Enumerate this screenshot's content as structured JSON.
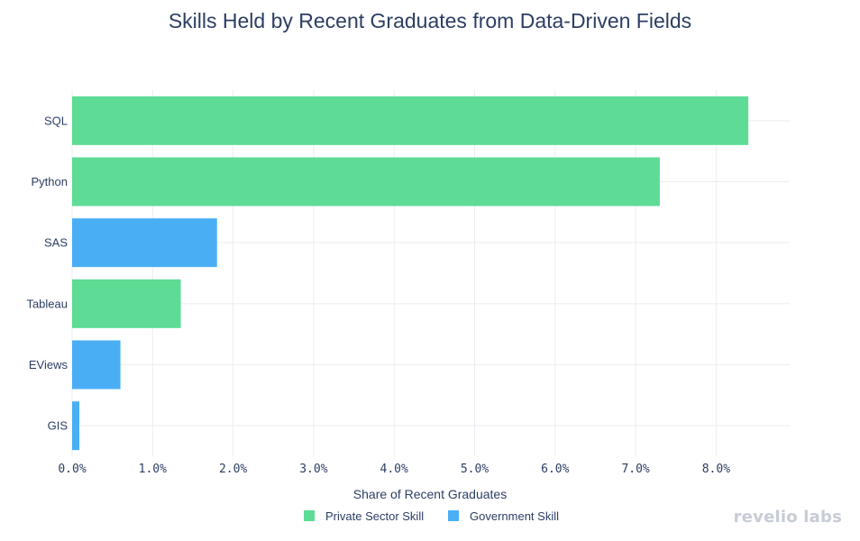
{
  "chart_data": {
    "type": "bar",
    "orientation": "horizontal",
    "title": "Skills Held by Recent Graduates from Data-Driven Fields",
    "xlabel": "Share of Recent Graduates",
    "ylabel": "",
    "xlim": [
      0,
      8.9
    ],
    "xticks": [
      "0.0%",
      "1.0%",
      "2.0%",
      "3.0%",
      "4.0%",
      "5.0%",
      "6.0%",
      "7.0%",
      "8.0%"
    ],
    "xtick_values": [
      0,
      1,
      2,
      3,
      4,
      5,
      6,
      7,
      8
    ],
    "grid": true,
    "legend_position": "bottom-center",
    "categories": [
      "SQL",
      "Python",
      "SAS",
      "Tableau",
      "EViews",
      "GIS"
    ],
    "values": [
      8.4,
      7.3,
      1.8,
      1.35,
      0.6,
      0.09
    ],
    "groups": [
      "Private Sector Skill",
      "Private Sector Skill",
      "Government Skill",
      "Private Sector Skill",
      "Government Skill",
      "Government Skill"
    ],
    "legend": [
      {
        "name": "Private Sector Skill",
        "color": "#5edb95"
      },
      {
        "name": "Government Skill",
        "color": "#4aaef5"
      }
    ]
  },
  "branding": {
    "text": "revelio labs"
  }
}
